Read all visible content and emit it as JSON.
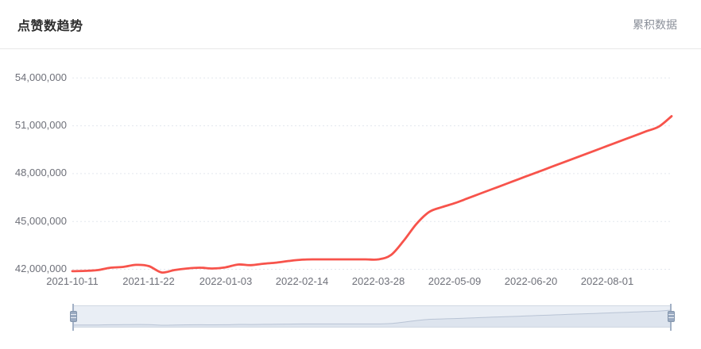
{
  "header": {
    "title": "点赞数趋势",
    "subtitle": "累积数据"
  },
  "colors": {
    "line": "#f7534b",
    "grid": "#e3e7ee",
    "axis_text": "#6e7079",
    "dz_fill": "#e9eef5",
    "dz_shadow": "#dde4ee",
    "dz_outline": "#cfd7e2",
    "dz_mini_line": "#b9c4d5",
    "dz_handle": "#9aaac1"
  },
  "chart_data": {
    "type": "line",
    "title": "点赞数趋势",
    "series": [
      {
        "name": "累积数据",
        "values": [
          41880000,
          41900000,
          41950000,
          42100000,
          42150000,
          42280000,
          42200000,
          41800000,
          41950000,
          42050000,
          42100000,
          42050000,
          42120000,
          42300000,
          42260000,
          42350000,
          42420000,
          42520000,
          42600000,
          42620000,
          42620000,
          42620000,
          42620000,
          42620000,
          42620000,
          42900000,
          43800000,
          44850000,
          45600000,
          45900000,
          46150000,
          46450000,
          46750000,
          47050000,
          47350000,
          47650000,
          47950000,
          48250000,
          48550000,
          48850000,
          49150000,
          49450000,
          49750000,
          50050000,
          50350000,
          50650000,
          50950000,
          51600000
        ]
      }
    ],
    "x": [
      "2021-10-11",
      "2021-10-18",
      "2021-10-25",
      "2021-11-01",
      "2021-11-08",
      "2021-11-15",
      "2021-11-22",
      "2021-11-29",
      "2021-12-06",
      "2021-12-13",
      "2021-12-20",
      "2021-12-27",
      "2022-01-03",
      "2022-01-10",
      "2022-01-17",
      "2022-01-24",
      "2022-01-31",
      "2022-02-07",
      "2022-02-14",
      "2022-02-21",
      "2022-02-28",
      "2022-03-07",
      "2022-03-14",
      "2022-03-21",
      "2022-03-28",
      "2022-04-04",
      "2022-04-11",
      "2022-04-18",
      "2022-04-25",
      "2022-05-02",
      "2022-05-09",
      "2022-05-16",
      "2022-05-23",
      "2022-05-30",
      "2022-06-06",
      "2022-06-13",
      "2022-06-20",
      "2022-06-27",
      "2022-07-04",
      "2022-07-11",
      "2022-07-18",
      "2022-07-25",
      "2022-08-01",
      "2022-08-08",
      "2022-08-15",
      "2022-08-22",
      "2022-08-29",
      "2022-09-05"
    ],
    "xtick_labels": [
      "2021-10-11",
      "2021-11-22",
      "2022-01-03",
      "2022-02-14",
      "2022-03-28",
      "2022-05-09",
      "2022-06-20",
      "2022-08-01"
    ],
    "ytick_labels": [
      "42,000,000",
      "45,000,000",
      "48,000,000",
      "51,000,000",
      "54,000,000"
    ],
    "ylim": [
      42000000,
      54000000
    ],
    "xlabel": "",
    "ylabel": "",
    "legend_position": "none",
    "grid": "horizontal-dotted",
    "smooth": true,
    "datazoom": {
      "start_pct": 0,
      "end_pct": 100
    }
  }
}
